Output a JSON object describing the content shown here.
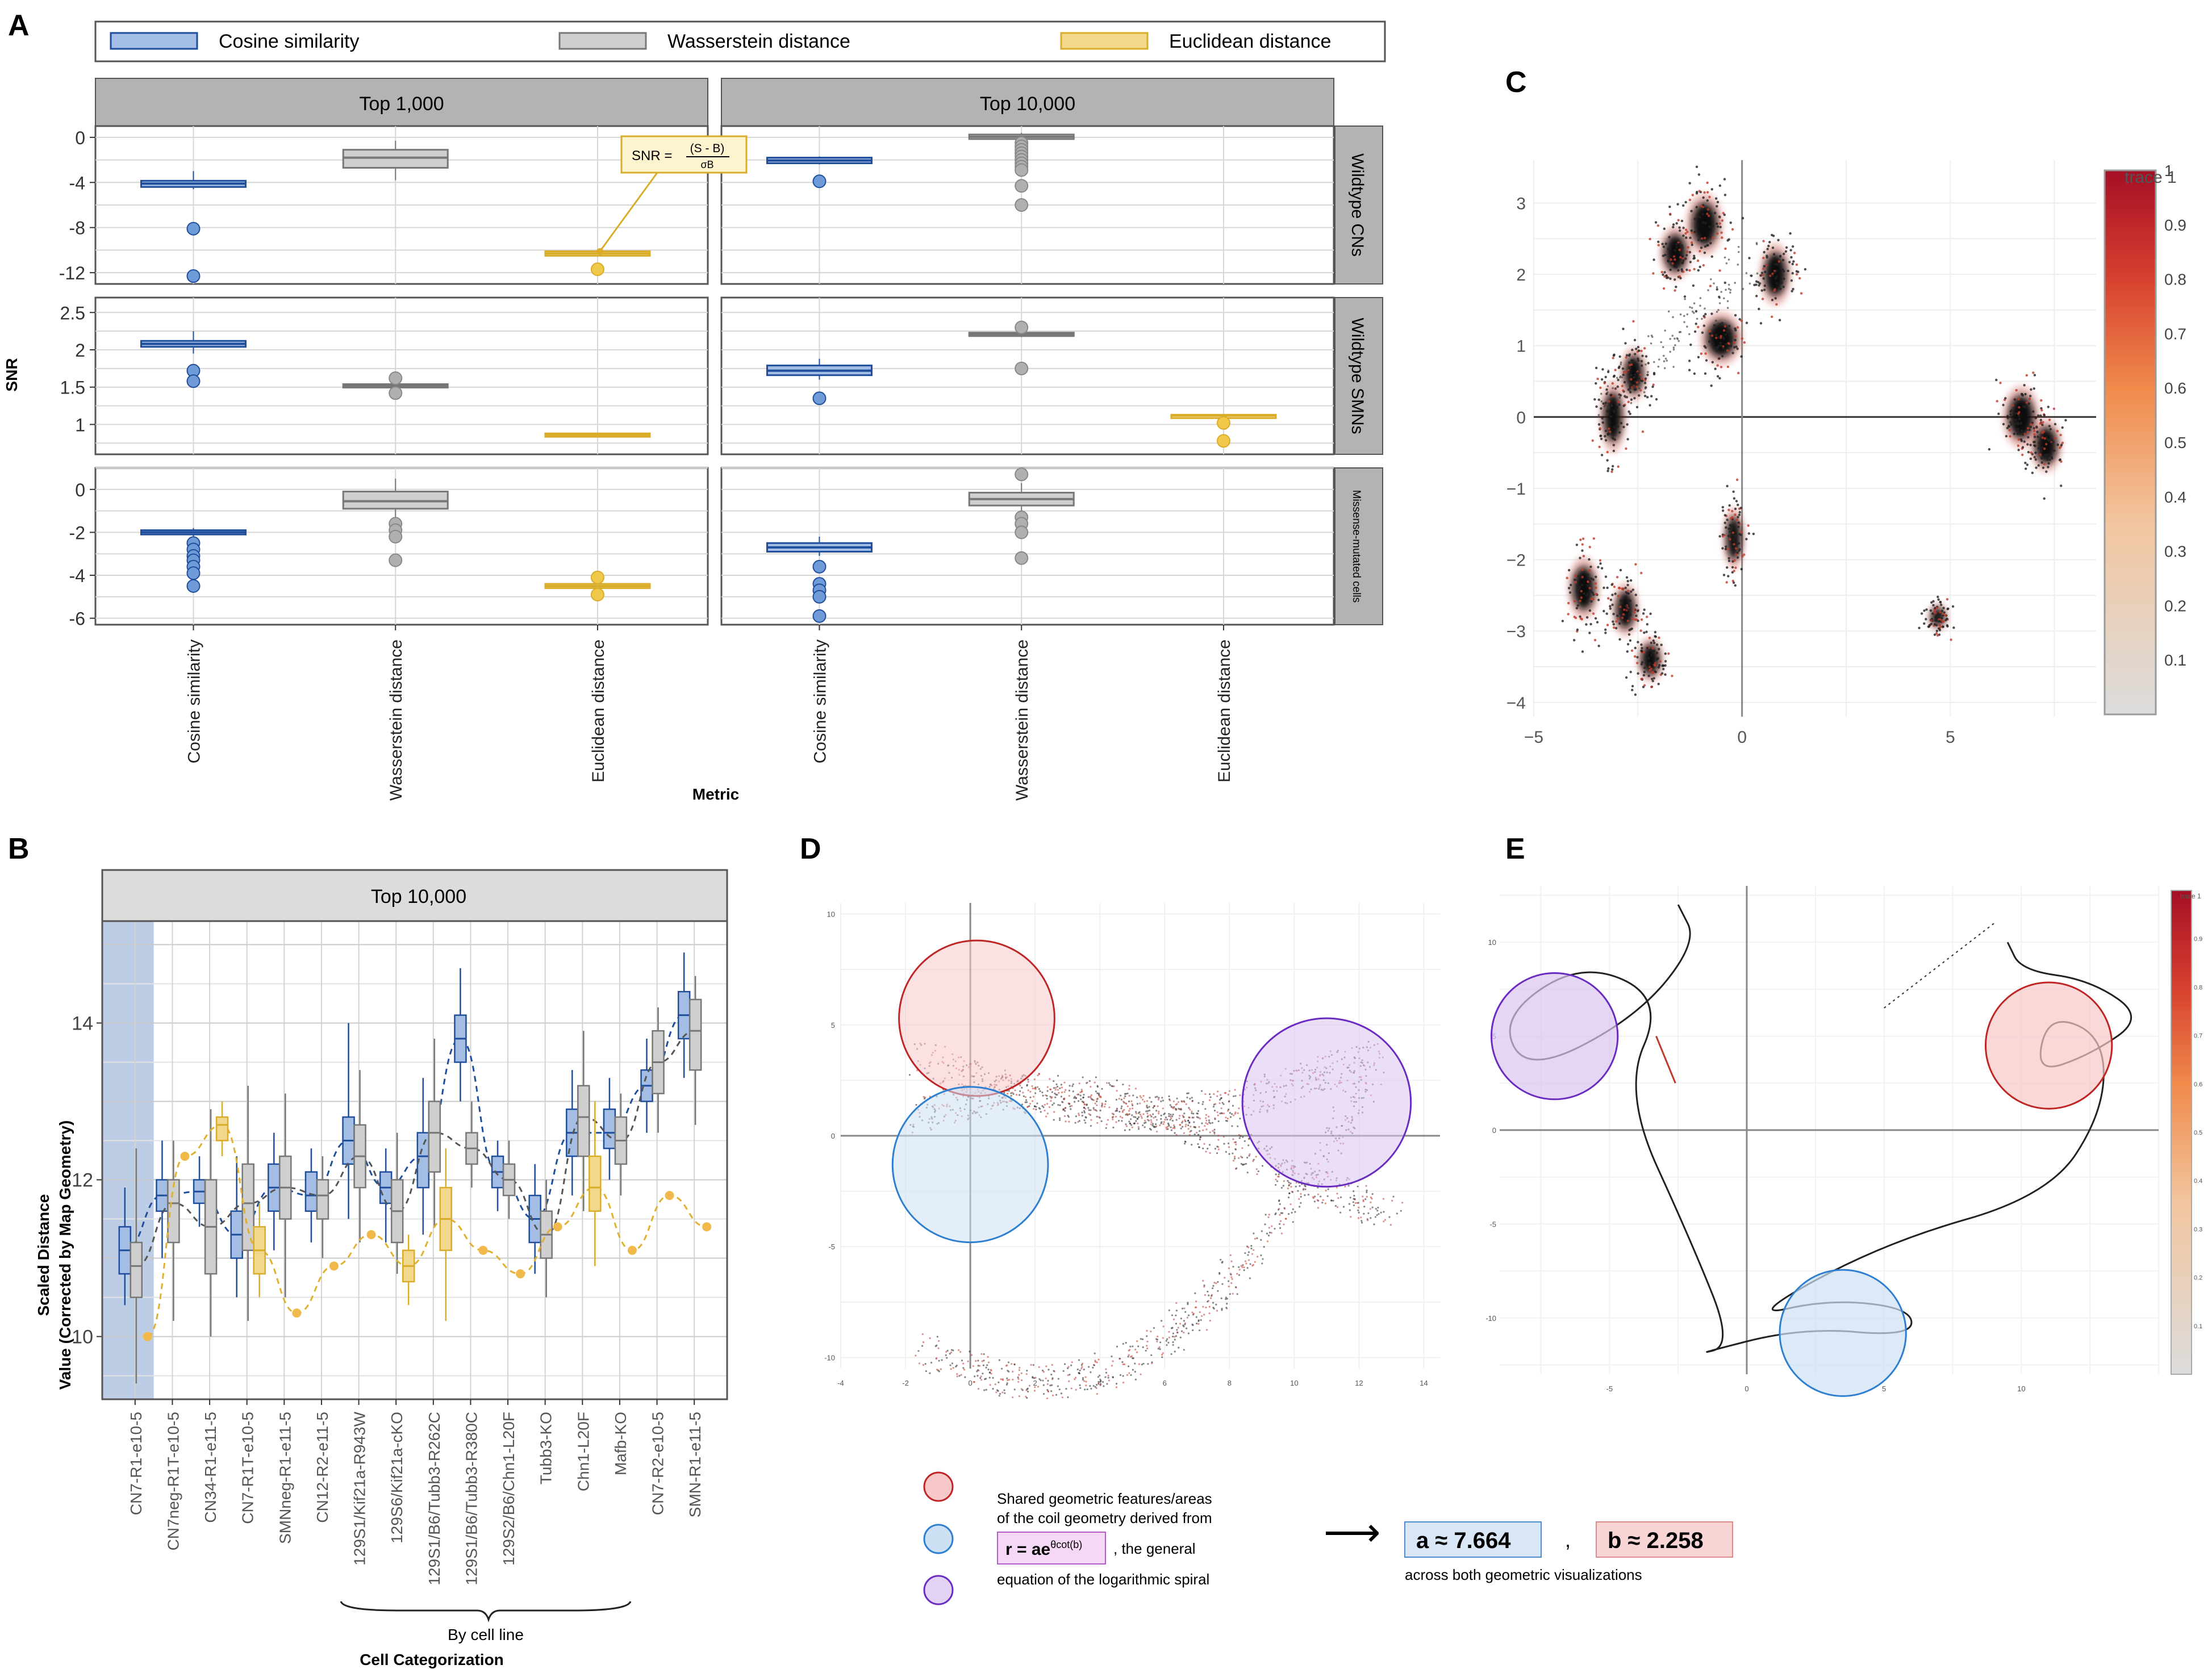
{
  "panel_labels": {
    "a": "A",
    "b": "B",
    "c": "C",
    "d": "D",
    "e": "E"
  },
  "colors": {
    "blue": "#4a7fc9",
    "blue_dark": "#1f4e9c",
    "gray": "#a9a9a9",
    "yellow": "#e8c24a",
    "red": "#b2182b"
  },
  "panel_a": {
    "legend": [
      "Cosine similarity",
      "Wasserstein distance",
      "Euclidean distance"
    ],
    "facet_cols": [
      "Top 1,000",
      "Top 10,000"
    ],
    "facet_rows": [
      "Wildtype CNs",
      "Wildtype SMNs",
      "Missense-mutated cells"
    ],
    "ylabel": "SNR",
    "xlabel": "Metric",
    "xcats": [
      "Cosine similarity",
      "Wasserstein distance",
      "Euclidean distance"
    ],
    "formula": {
      "lhs": "SNR =",
      "num": "(S - B)",
      "den": "σB"
    }
  },
  "panel_b": {
    "facet_title": "Top 10,000",
    "ylabel_line1": "Scaled Distance",
    "ylabel_line2": "Value (Corrected by Map Geometry)",
    "xlabel": "Cell Categorization",
    "brace_label": "By cell line"
  },
  "panel_d": {
    "legend": {
      "line1": "Shared geometric features/areas",
      "line2": "of the coil geometry derived from",
      "eq_base": "r = ae",
      "eq_exp": "θcot(b)",
      "eq_suffix": ", the general",
      "line4": "equation of the logarithmic spiral"
    },
    "arrow": "⟶",
    "a_value": "a ≈ 7.664",
    "comma": ",",
    "b_value": "b ≈ 2.258",
    "note": "across both geometric visualizations"
  },
  "chart_data": [
    {
      "type": "box",
      "id": "A",
      "title": "SNR by metric, feature set and cell group",
      "xlabel": "Metric",
      "ylabel": "SNR",
      "facets": [
        {
          "col": "Top 1,000",
          "row": "Wildtype CNs",
          "ylim": [
            -13,
            1
          ],
          "yticks": [
            0,
            -4,
            -8,
            -12
          ],
          "boxes": [
            {
              "metric": "Cosine similarity",
              "q1": -4.4,
              "median": -4.1,
              "q3": -3.85,
              "wlo": -4.6,
              "whi": -3.0,
              "outliers": [
                -8.1,
                -12.3
              ]
            },
            {
              "metric": "Wasserstein distance",
              "q1": -2.7,
              "median": -1.8,
              "q3": -1.1,
              "wlo": -3.8,
              "whi": -0.3,
              "outliers": []
            },
            {
              "metric": "Euclidean distance",
              "q1": -10.5,
              "median": -10.3,
              "q3": -10.1,
              "wlo": -10.6,
              "whi": -10.0,
              "outliers": [
                -11.7
              ]
            }
          ]
        },
        {
          "col": "Top 10,000",
          "row": "Wildtype CNs",
          "ylim": [
            -13,
            1
          ],
          "yticks": [
            0,
            -4,
            -8,
            -12
          ],
          "boxes": [
            {
              "metric": "Cosine similarity",
              "q1": -2.3,
              "median": -2.05,
              "q3": -1.8,
              "wlo": -2.4,
              "whi": -1.7,
              "outliers": [
                -3.9
              ]
            },
            {
              "metric": "Wasserstein distance",
              "q1": -0.15,
              "median": 0.05,
              "q3": 0.25,
              "wlo": -0.3,
              "whi": 0.4,
              "outliers": [
                -0.5,
                -0.8,
                -1.1,
                -1.4,
                -1.7,
                -2.0,
                -2.3,
                -2.6,
                -2.9,
                -4.3,
                -6.0
              ]
            },
            {
              "metric": "Euclidean distance",
              "empty": true
            }
          ]
        },
        {
          "col": "Top 1,000",
          "row": "Wildtype SMNs",
          "ylim": [
            0.6,
            2.7
          ],
          "yticks": [
            2.5,
            2.0,
            1.5,
            1.0
          ],
          "boxes": [
            {
              "metric": "Cosine similarity",
              "q1": 2.04,
              "median": 2.08,
              "q3": 2.12,
              "wlo": 1.95,
              "whi": 2.25,
              "outliers": [
                1.72,
                1.58
              ]
            },
            {
              "metric": "Wasserstein distance",
              "q1": 1.5,
              "median": 1.52,
              "q3": 1.54,
              "wlo": 1.48,
              "whi": 1.56,
              "outliers": [
                1.62,
                1.42
              ]
            },
            {
              "metric": "Euclidean distance",
              "q1": 0.84,
              "median": 0.86,
              "q3": 0.88,
              "wlo": 0.83,
              "whi": 0.89,
              "outliers": []
            }
          ]
        },
        {
          "col": "Top 10,000",
          "row": "Wildtype SMNs",
          "ylim": [
            0.6,
            2.7
          ],
          "yticks": [
            2.5,
            2.0,
            1.5,
            1.0
          ],
          "boxes": [
            {
              "metric": "Cosine similarity",
              "q1": 1.66,
              "median": 1.72,
              "q3": 1.79,
              "wlo": 1.6,
              "whi": 1.88,
              "outliers": [
                1.35
              ]
            },
            {
              "metric": "Wasserstein distance",
              "q1": 2.19,
              "median": 2.21,
              "q3": 2.23,
              "wlo": 2.17,
              "whi": 2.25,
              "outliers": [
                2.3,
                1.75
              ]
            },
            {
              "metric": "Euclidean distance",
              "q1": 1.11,
              "median": 1.12,
              "q3": 1.13,
              "wlo": 1.1,
              "whi": 1.14,
              "outliers": [
                1.02,
                0.78
              ]
            }
          ]
        },
        {
          "col": "Top 1,000",
          "row": "Missense-mutated cells",
          "ylim": [
            -6.3,
            1.0
          ],
          "yticks": [
            0,
            -2,
            -4,
            -6
          ],
          "boxes": [
            {
              "metric": "Cosine similarity",
              "q1": -2.1,
              "median": -2.0,
              "q3": -1.9,
              "wlo": -2.2,
              "whi": -1.8,
              "outliers": [
                -2.5,
                -2.8,
                -3.1,
                -3.3,
                -3.6,
                -3.9,
                -4.5
              ]
            },
            {
              "metric": "Wasserstein distance",
              "q1": -0.9,
              "median": -0.55,
              "q3": -0.1,
              "wlo": -1.3,
              "whi": 0.5,
              "outliers": [
                -1.6,
                -1.9,
                -2.2,
                -3.3
              ]
            },
            {
              "metric": "Euclidean distance",
              "q1": -4.6,
              "median": -4.5,
              "q3": -4.4,
              "wlo": -4.65,
              "whi": -4.35,
              "outliers": [
                -4.1,
                -4.9
              ]
            }
          ]
        },
        {
          "col": "Top 10,000",
          "row": "Missense-mutated cells",
          "ylim": [
            -6.3,
            1.0
          ],
          "yticks": [
            0,
            -2,
            -4,
            -6
          ],
          "boxes": [
            {
              "metric": "Cosine similarity",
              "q1": -2.9,
              "median": -2.7,
              "q3": -2.5,
              "wlo": -3.1,
              "whi": -2.2,
              "outliers": [
                -3.6,
                -4.4,
                -4.7,
                -5.0,
                -5.9
              ]
            },
            {
              "metric": "Wasserstein distance",
              "q1": -0.75,
              "median": -0.45,
              "q3": -0.15,
              "wlo": -1.1,
              "whi": 0.3,
              "outliers": [
                0.7,
                -1.3,
                -1.6,
                -2.0,
                -3.2
              ]
            },
            {
              "metric": "Euclidean distance",
              "empty": true
            }
          ]
        }
      ]
    },
    {
      "type": "box",
      "id": "B",
      "title": "Top 10,000",
      "xlabel": "Cell Categorization",
      "ylabel": "Scaled Distance Value (Corrected by Map Geometry)",
      "ylim": [
        9.2,
        15.3
      ],
      "yticks": [
        10,
        12,
        14
      ],
      "categories": [
        "CN7-R1-e10-5",
        "CN7neg-R1T-e10-5",
        "CN34-R1-e11-5",
        "CN7-R1T-e10-5",
        "SMNneg-R1-e11-5",
        "CN12-R2-e11-5",
        "129S1/Kif21a-R943W",
        "129S6/Kif21a-cKO",
        "129S1/B6/Tubb3-R262C",
        "129S1/B6/Tubb3-R380C",
        "129S2/B6/Chn1-L20F",
        "Tubb3-KO",
        "Chn1-L20F",
        "Mafb-KO",
        "CN7-R2-e10-5",
        "SMN-R1-e11-5"
      ],
      "highlight_category": "CN7-R1-e10-5",
      "series": [
        {
          "name": "Cosine similarity",
          "medians": [
            11.1,
            11.8,
            11.85,
            11.3,
            11.9,
            11.8,
            12.5,
            11.9,
            12.3,
            13.8,
            12.1,
            11.5,
            12.6,
            12.6,
            13.2,
            14.1
          ],
          "q1": [
            10.8,
            11.6,
            11.7,
            11.0,
            11.6,
            11.6,
            12.2,
            11.7,
            11.9,
            13.5,
            11.9,
            11.2,
            12.3,
            12.4,
            13.0,
            13.8
          ],
          "q3": [
            11.4,
            12.0,
            12.0,
            11.6,
            12.2,
            12.1,
            12.8,
            12.1,
            12.6,
            14.1,
            12.3,
            11.8,
            12.9,
            12.9,
            13.4,
            14.4
          ],
          "wlo": [
            10.4,
            11.0,
            11.4,
            10.5,
            11.1,
            11.2,
            11.5,
            11.2,
            11.3,
            13.0,
            11.6,
            10.8,
            11.8,
            12.0,
            12.6,
            13.3
          ],
          "whi": [
            11.9,
            12.5,
            12.3,
            12.3,
            12.6,
            12.4,
            14.0,
            12.4,
            13.3,
            14.7,
            12.5,
            12.2,
            13.4,
            13.3,
            13.8,
            14.9
          ]
        },
        {
          "name": "Wasserstein distance",
          "medians": [
            10.9,
            11.7,
            11.4,
            11.7,
            11.9,
            11.8,
            12.3,
            11.6,
            12.6,
            12.4,
            12.0,
            11.3,
            12.8,
            12.5,
            13.5,
            13.9
          ],
          "q1": [
            10.5,
            11.2,
            10.8,
            11.1,
            11.5,
            11.5,
            11.9,
            11.2,
            12.1,
            12.2,
            11.8,
            11.0,
            12.3,
            12.2,
            13.1,
            13.4
          ],
          "q3": [
            11.2,
            12.0,
            12.0,
            12.2,
            12.3,
            12.0,
            12.7,
            12.0,
            13.0,
            12.6,
            12.2,
            11.6,
            13.2,
            12.8,
            13.9,
            14.3
          ],
          "wlo": [
            9.4,
            10.2,
            10.0,
            10.2,
            10.5,
            11.0,
            11.2,
            10.8,
            11.4,
            11.9,
            11.5,
            10.5,
            11.6,
            11.8,
            12.6,
            12.7
          ],
          "whi": [
            12.4,
            12.5,
            12.9,
            13.2,
            13.1,
            12.3,
            13.4,
            12.6,
            13.8,
            13.0,
            12.5,
            12.0,
            13.9,
            13.1,
            14.2,
            14.6
          ]
        },
        {
          "name": "Euclidean distance",
          "medians": [
            10.0,
            12.3,
            12.7,
            11.1,
            10.3,
            10.9,
            11.3,
            10.9,
            11.5,
            11.1,
            10.8,
            11.4,
            11.9,
            11.1,
            11.8,
            11.4
          ],
          "q1": [
            null,
            null,
            12.5,
            10.8,
            null,
            null,
            null,
            10.7,
            11.1,
            null,
            null,
            null,
            11.6,
            null,
            null,
            null
          ],
          "q3": [
            null,
            null,
            12.8,
            11.4,
            null,
            null,
            null,
            11.1,
            11.9,
            null,
            null,
            null,
            12.3,
            null,
            null,
            null
          ],
          "wlo": [
            null,
            null,
            12.3,
            10.5,
            null,
            null,
            null,
            10.4,
            10.2,
            null,
            null,
            null,
            10.9,
            null,
            null,
            null
          ],
          "whi": [
            null,
            null,
            13.0,
            11.7,
            null,
            null,
            null,
            11.3,
            12.4,
            null,
            null,
            null,
            13.0,
            null,
            null,
            null
          ]
        }
      ]
    },
    {
      "type": "scatter",
      "id": "C",
      "title": "",
      "xlim": [
        -5,
        8.5
      ],
      "ylim": [
        -4.2,
        3.6
      ],
      "xticks": [
        -5,
        0,
        5
      ],
      "yticks": [
        3,
        2,
        1,
        0,
        -1,
        -2,
        -3,
        -4
      ],
      "colorbar": {
        "label": "trace 1",
        "ticks": [
          1,
          0.9,
          0.8,
          0.7,
          0.6,
          0.5,
          0.4,
          0.3,
          0.2,
          0.1
        ],
        "range": [
          0,
          1
        ]
      },
      "clusters": [
        {
          "cx": -0.9,
          "cy": 2.7,
          "sx": 0.35,
          "sy": 0.35
        },
        {
          "cx": -1.6,
          "cy": 2.3,
          "sx": 0.3,
          "sy": 0.3
        },
        {
          "cx": 0.8,
          "cy": 2.0,
          "sx": 0.3,
          "sy": 0.35
        },
        {
          "cx": -0.5,
          "cy": 1.1,
          "sx": 0.4,
          "sy": 0.3
        },
        {
          "cx": -2.6,
          "cy": 0.6,
          "sx": 0.25,
          "sy": 0.3
        },
        {
          "cx": -3.1,
          "cy": 0.0,
          "sx": 0.25,
          "sy": 0.4
        },
        {
          "cx": -0.2,
          "cy": -1.7,
          "sx": 0.2,
          "sy": 0.35
        },
        {
          "cx": 6.7,
          "cy": 0.0,
          "sx": 0.35,
          "sy": 0.35
        },
        {
          "cx": 7.3,
          "cy": -0.4,
          "sx": 0.3,
          "sy": 0.3
        },
        {
          "cx": -3.8,
          "cy": -2.4,
          "sx": 0.3,
          "sy": 0.35
        },
        {
          "cx": -2.8,
          "cy": -2.7,
          "sx": 0.25,
          "sy": 0.3
        },
        {
          "cx": -2.2,
          "cy": -3.4,
          "sx": 0.25,
          "sy": 0.25
        },
        {
          "cx": 4.7,
          "cy": -2.8,
          "sx": 0.18,
          "sy": 0.15
        }
      ]
    },
    {
      "type": "scatter",
      "id": "D",
      "xlim": [
        -4,
        14.5
      ],
      "ylim": [
        -10.5,
        10.5
      ],
      "xticks": [
        -4,
        -2,
        0,
        2,
        4,
        6,
        8,
        10,
        12,
        14
      ],
      "yticks": [
        10,
        5,
        0,
        -5,
        -10
      ],
      "circles": [
        {
          "color": "red",
          "cx": 0.2,
          "cy": 5.3,
          "r": 2.4
        },
        {
          "color": "blue",
          "cx": 0.0,
          "cy": -1.3,
          "r": 2.4
        },
        {
          "color": "purple",
          "cx": 11.0,
          "cy": 1.5,
          "r": 2.6
        }
      ]
    },
    {
      "type": "line",
      "id": "E",
      "xlim": [
        -9,
        15
      ],
      "ylim": [
        -13,
        13
      ],
      "xticks": [
        -5,
        0,
        5,
        10
      ],
      "yticks": [
        10,
        5,
        0,
        -5,
        -10
      ],
      "colorbar": {
        "label": "trace 1",
        "ticks": [
          0.9,
          0.8,
          0.7,
          0.6,
          0.5,
          0.4,
          0.3,
          0.2,
          0.1
        ]
      },
      "circles": [
        {
          "color": "purple",
          "cx": -7.0,
          "cy": 5.0,
          "r": 2.3
        },
        {
          "color": "red",
          "cx": 11.0,
          "cy": 4.5,
          "r": 2.3
        },
        {
          "color": "blue",
          "cx": 3.5,
          "cy": -10.8,
          "r": 2.3
        }
      ]
    }
  ]
}
